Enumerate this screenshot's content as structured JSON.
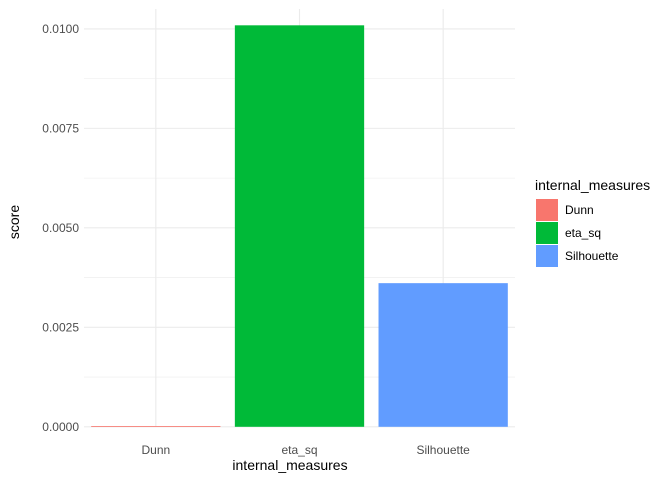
{
  "chart_data": {
    "type": "bar",
    "title": "",
    "xlabel": "internal_measures",
    "ylabel": "score",
    "categories": [
      "Dunn",
      "eta_sq",
      "Silhouette"
    ],
    "values": [
      8.9e-06,
      0.01009,
      0.00361
    ],
    "colors": [
      "#F8766D",
      "#00BA38",
      "#619CFF"
    ],
    "ylim": [
      -5e-06,
      0.0105
    ],
    "yticks": [
      0,
      0.0025,
      0.005,
      0.0075,
      0.01
    ],
    "ytick_labels": [
      "0.0000",
      "0.0025",
      "0.0050",
      "0.0075",
      "0.0100"
    ],
    "grid": true,
    "legend": {
      "title": "internal_measures",
      "position": "right",
      "entries": [
        "Dunn",
        "eta_sq",
        "Silhouette"
      ]
    }
  }
}
